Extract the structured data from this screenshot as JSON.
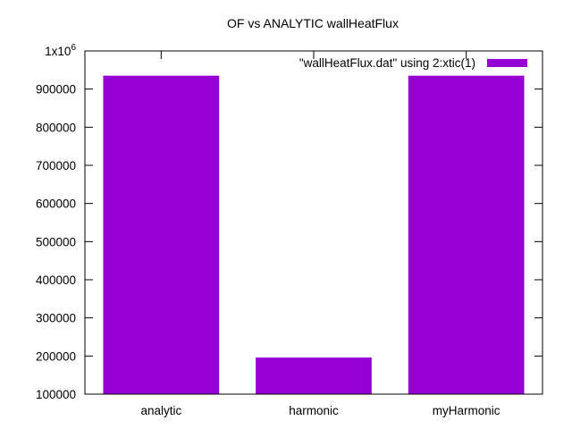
{
  "chart_data": {
    "type": "bar",
    "title": "OF vs ANALYTIC wallHeatFlux",
    "xlabel": "",
    "ylabel": "",
    "categories": [
      "analytic",
      "harmonic",
      "myHarmonic"
    ],
    "series": [
      {
        "name": "\"wallHeatFlux.dat\" using 2:xtic(1)",
        "values": [
          935000,
          196000,
          935000
        ],
        "color": "#9400d3"
      }
    ],
    "ylim": [
      100000,
      1000000
    ],
    "yticks": [
      {
        "value": 100000,
        "label": "100000"
      },
      {
        "value": 200000,
        "label": "200000"
      },
      {
        "value": 300000,
        "label": "300000"
      },
      {
        "value": 400000,
        "label": "400000"
      },
      {
        "value": 500000,
        "label": "500000"
      },
      {
        "value": 600000,
        "label": "600000"
      },
      {
        "value": 700000,
        "label": "700000"
      },
      {
        "value": 800000,
        "label": "800000"
      },
      {
        "value": 900000,
        "label": "900000"
      }
    ],
    "ytop_label": {
      "base": "1x10",
      "exponent": "6"
    },
    "grid": false,
    "legend_position": "top-right",
    "mirror_ticks": true
  }
}
